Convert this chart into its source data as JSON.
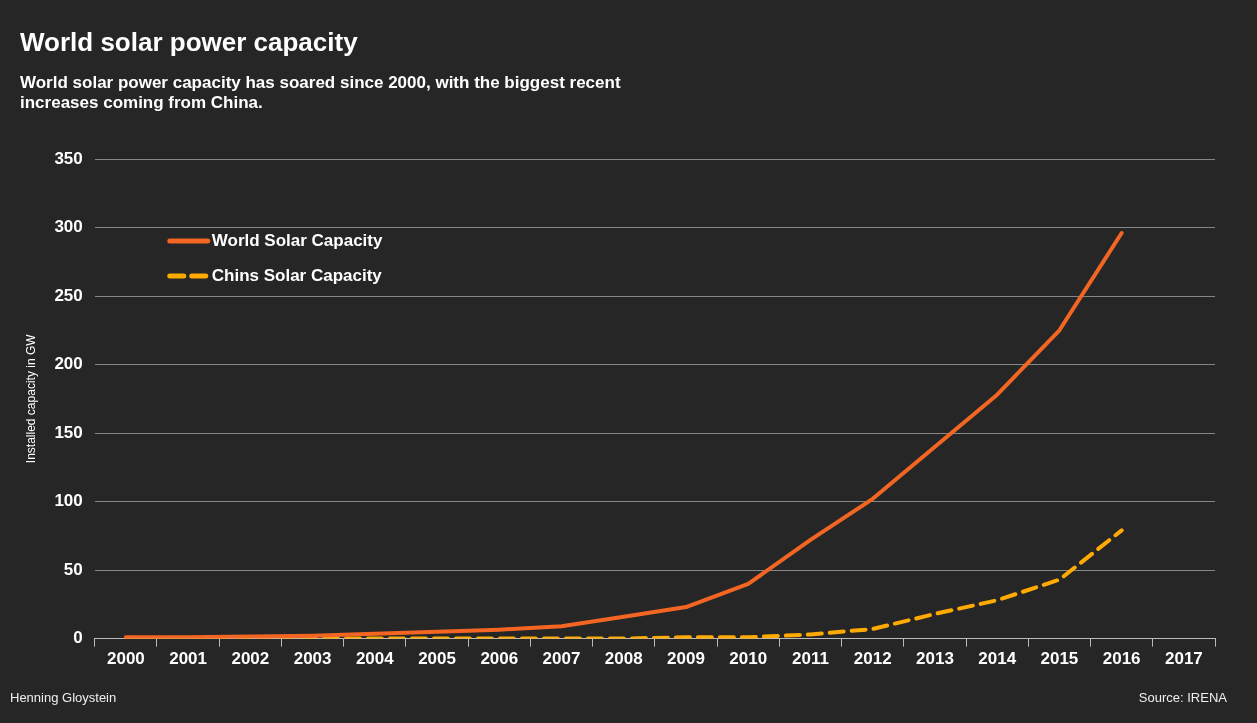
{
  "chart_data": {
    "type": "line",
    "title": "World solar power capacity",
    "subtitle": "World solar power capacity has soared since 2000, with the biggest recent increases coming from China.",
    "ylabel": "Installed capacity in GW",
    "categories": [
      "2000",
      "2001",
      "2002",
      "2003",
      "2004",
      "2005",
      "2006",
      "2007",
      "2008",
      "2009",
      "2010",
      "2011",
      "2012",
      "2013",
      "2014",
      "2015",
      "2016",
      "2017"
    ],
    "series": [
      {
        "name": "World Solar Capacity",
        "color": "#f26522",
        "line_style": "solid",
        "values": [
          1,
          1,
          1.5,
          2,
          3.5,
          5,
          6.5,
          9,
          16,
          23,
          40,
          72,
          102,
          140,
          178,
          225,
          296,
          null
        ]
      },
      {
        "name": "Chins Solar Capacity",
        "color": "#ffaa00",
        "line_style": "dashed",
        "values": [
          0,
          0,
          0,
          0,
          0,
          0,
          0,
          0,
          0,
          1,
          1,
          3,
          7,
          18,
          28,
          43,
          79,
          null
        ]
      }
    ],
    "ylim": [
      0,
      350
    ],
    "yticks": [
      0,
      50,
      100,
      150,
      200,
      250,
      300,
      350
    ],
    "grid": "y",
    "legend": "top left",
    "marker": "none",
    "annotations": [
      "Henning Gloystein",
      "Source: IRENA"
    ]
  }
}
